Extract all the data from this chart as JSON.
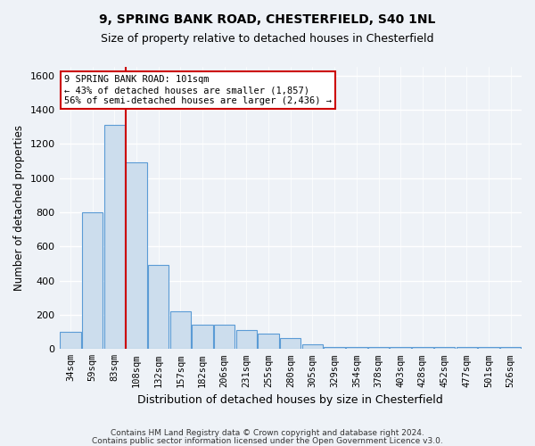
{
  "title1": "9, SPRING BANK ROAD, CHESTERFIELD, S40 1NL",
  "title2": "Size of property relative to detached houses in Chesterfield",
  "xlabel": "Distribution of detached houses by size in Chesterfield",
  "ylabel": "Number of detached properties",
  "bar_labels": [
    "34sqm",
    "59sqm",
    "83sqm",
    "108sqm",
    "132sqm",
    "157sqm",
    "182sqm",
    "206sqm",
    "231sqm",
    "255sqm",
    "280sqm",
    "305sqm",
    "329sqm",
    "354sqm",
    "378sqm",
    "403sqm",
    "428sqm",
    "452sqm",
    "477sqm",
    "501sqm",
    "526sqm"
  ],
  "bar_values": [
    100,
    800,
    1310,
    1090,
    490,
    220,
    145,
    145,
    110,
    90,
    65,
    30,
    10,
    10,
    10,
    10,
    10,
    10,
    10,
    10,
    10
  ],
  "bar_color": "#ccdded",
  "bar_edge_color": "#5b9bd5",
  "vline_color": "#cc0000",
  "vline_pos": 2.5,
  "ylim": [
    0,
    1650
  ],
  "yticks": [
    0,
    200,
    400,
    600,
    800,
    1000,
    1200,
    1400,
    1600
  ],
  "annotation_title": "9 SPRING BANK ROAD: 101sqm",
  "annotation_line1": "← 43% of detached houses are smaller (1,857)",
  "annotation_line2": "56% of semi-detached houses are larger (2,436) →",
  "footer1": "Contains HM Land Registry data © Crown copyright and database right 2024.",
  "footer2": "Contains public sector information licensed under the Open Government Licence v3.0.",
  "background_color": "#eef2f7",
  "grid_color": "#ffffff",
  "annotation_box_facecolor": "#ffffff",
  "annotation_box_edgecolor": "#cc0000"
}
